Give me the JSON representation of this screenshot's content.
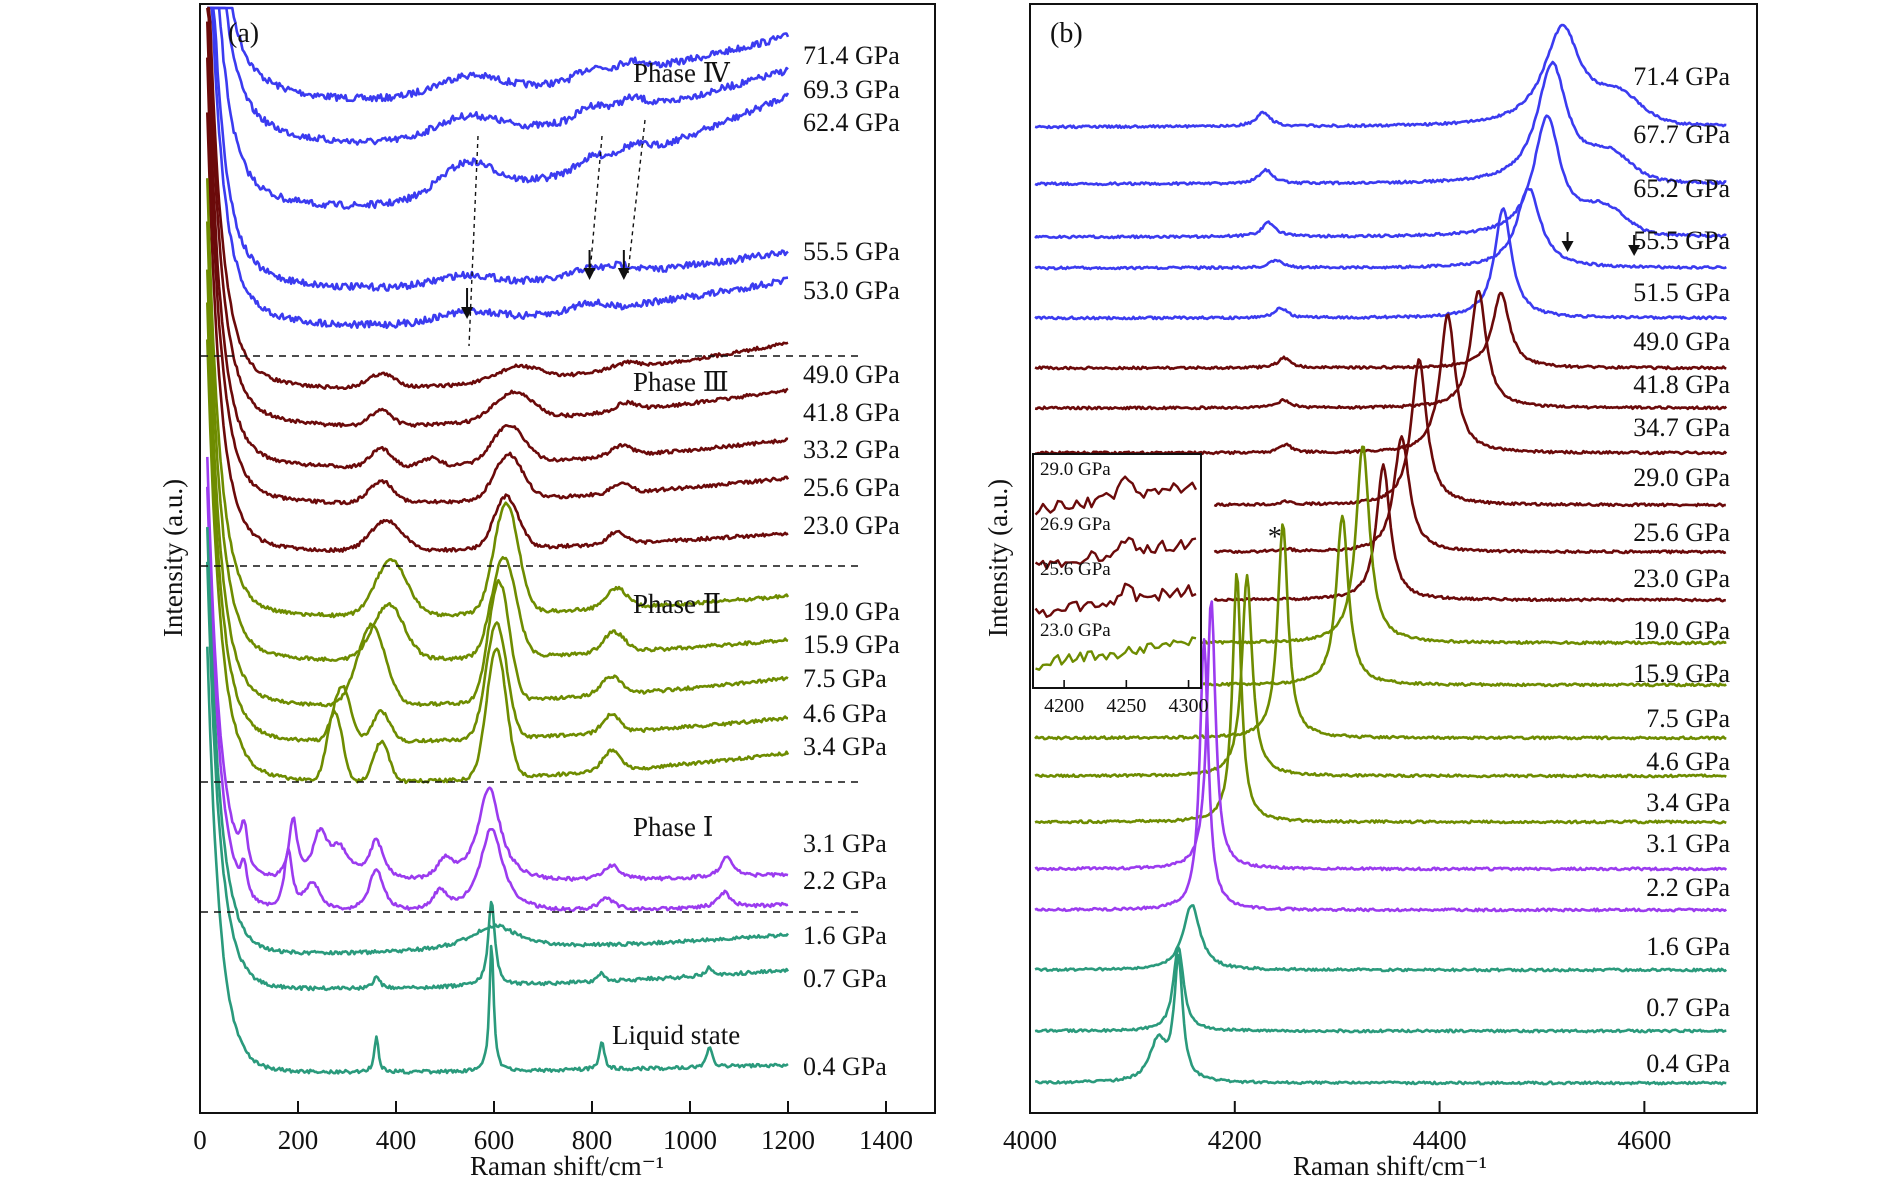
{
  "chart_data": [
    {
      "type": "line",
      "panel_label": "(a)",
      "title": "",
      "xlabel": "Raman shift/cm⁻¹",
      "ylabel": "Intensity (a.u.)",
      "xlim": [
        0,
        1500
      ],
      "xticks": [
        0,
        200,
        400,
        600,
        800,
        1000,
        1200,
        1400
      ],
      "x_data_range": [
        15,
        1200
      ],
      "y_ticks_shown": false,
      "grid": false,
      "legend": "none (series labeled at right end)",
      "phase_annotations": [
        {
          "text": "Phase Ⅳ",
          "phase": "IV"
        },
        {
          "text": "Phase Ⅲ",
          "phase": "III"
        },
        {
          "text": "Phase Ⅱ",
          "phase": "II"
        },
        {
          "text": "Phase Ⅰ",
          "phase": "I"
        },
        {
          "text": "Liquid state",
          "phase": "liquid"
        }
      ],
      "annotation_arrows_cm1": [
        545,
        795,
        865
      ],
      "series": [
        {
          "name": "71.4 GPa",
          "phase": "IV",
          "color": "#3b3bf0",
          "peaks_cm1": [
            545,
            800,
            880
          ]
        },
        {
          "name": "69.3 GPa",
          "phase": "IV",
          "color": "#3b3bf0",
          "peaks_cm1": [
            545,
            800,
            880
          ]
        },
        {
          "name": "62.4 GPa",
          "phase": "IV",
          "color": "#3b3bf0",
          "peaks_cm1": [
            545,
            800,
            880
          ]
        },
        {
          "name": "55.5 GPa",
          "phase": "IV",
          "color": "#3b3bf0",
          "peaks_cm1": [
            540,
            790,
            860
          ]
        },
        {
          "name": "53.0 GPa",
          "phase": "IV",
          "color": "#3b3bf0",
          "peaks_cm1": [
            545,
            790
          ]
        },
        {
          "name": "49.0 GPa",
          "phase": "III",
          "color": "#6b0a0a",
          "peaks_cm1": [
            370,
            650,
            870
          ]
        },
        {
          "name": "41.8 GPa",
          "phase": "III",
          "color": "#6b0a0a",
          "peaks_cm1": [
            370,
            640,
            870
          ]
        },
        {
          "name": "33.2 GPa",
          "phase": "III",
          "color": "#6b0a0a",
          "peaks_cm1": [
            370,
            470,
            630,
            860
          ]
        },
        {
          "name": "25.6 GPa",
          "phase": "III",
          "color": "#6b0a0a",
          "peaks_cm1": [
            370,
            630,
            860
          ]
        },
        {
          "name": "23.0 GPa",
          "phase": "III",
          "color": "#6b0a0a",
          "peaks_cm1": [
            380,
            625,
            850
          ]
        },
        {
          "name": "19.0 GPa",
          "phase": "II",
          "color": "#6e8c00",
          "peaks_cm1": [
            390,
            625,
            850
          ]
        },
        {
          "name": "15.9 GPa",
          "phase": "II",
          "color": "#6e8c00",
          "peaks_cm1": [
            385,
            620,
            845
          ]
        },
        {
          "name": "7.5 GPa",
          "phase": "II",
          "color": "#6e8c00",
          "peaks_cm1": [
            350,
            610,
            840
          ]
        },
        {
          "name": "4.6 GPa",
          "phase": "II",
          "color": "#6e8c00",
          "peaks_cm1": [
            290,
            370,
            605,
            840
          ]
        },
        {
          "name": "3.4 GPa",
          "phase": "II",
          "color": "#6e8c00",
          "peaks_cm1": [
            275,
            370,
            605,
            840
          ]
        },
        {
          "name": "3.1 GPa",
          "phase": "I",
          "color": "#9b3bef",
          "peaks_cm1": [
            90,
            190,
            245,
            285,
            360,
            500,
            590,
            840,
            1075
          ]
        },
        {
          "name": "2.2 GPa",
          "phase": "I",
          "color": "#9b3bef",
          "peaks_cm1": [
            90,
            180,
            230,
            360,
            490,
            595,
            830,
            1070
          ]
        },
        {
          "name": "1.6 GPa",
          "phase": "liquid",
          "color": "#2a9a7c",
          "peaks_cm1": [
            600
          ]
        },
        {
          "name": "0.7 GPa",
          "phase": "liquid",
          "color": "#2a9a7c",
          "peaks_cm1": [
            360,
            595,
            820,
            1040
          ]
        },
        {
          "name": "0.4 GPa",
          "phase": "liquid",
          "color": "#2a9a7c",
          "peaks_cm1": [
            360,
            595,
            820,
            1040
          ]
        }
      ]
    },
    {
      "type": "line",
      "panel_label": "(b)",
      "title": "",
      "xlabel": "Raman shift/cm⁻¹",
      "ylabel": "Intensity (a.u.)",
      "xlim": [
        4000,
        4710
      ],
      "xticks": [
        4000,
        4200,
        4400,
        4600
      ],
      "x_data_range": [
        4005,
        4680
      ],
      "y_ticks_shown": false,
      "grid": false,
      "legend": "none (series labeled at right end)",
      "annotations": [
        {
          "text": "*",
          "x_cm1": 4240
        }
      ],
      "annotation_arrows_cm1": [
        4525,
        4590
      ],
      "series": [
        {
          "name": "71.4 GPa",
          "color": "#3b3bf0",
          "peaks_cm1": [
            4228,
            4520
          ]
        },
        {
          "name": "67.7 GPa",
          "color": "#3b3bf0",
          "peaks_cm1": [
            4230,
            4510
          ]
        },
        {
          "name": "65.2 GPa",
          "color": "#3b3bf0",
          "peaks_cm1": [
            4233,
            4505
          ]
        },
        {
          "name": "55.5 GPa",
          "color": "#3b3bf0",
          "peaks_cm1": [
            4240,
            4487
          ]
        },
        {
          "name": "51.5 GPa",
          "color": "#3b3bf0",
          "peaks_cm1": [
            4245,
            4462
          ]
        },
        {
          "name": "49.0 GPa",
          "color": "#6b0a0a",
          "peaks_cm1": [
            4248,
            4460
          ]
        },
        {
          "name": "41.8 GPa",
          "color": "#6b0a0a",
          "peaks_cm1": [
            4248,
            4438
          ]
        },
        {
          "name": "34.7 GPa",
          "color": "#6b0a0a",
          "peaks_cm1": [
            4250,
            4408
          ]
        },
        {
          "name": "29.0 GPa",
          "color": "#6b0a0a",
          "peaks_cm1": [
            4250,
            4380
          ]
        },
        {
          "name": "25.6 GPa",
          "color": "#6b0a0a",
          "peaks_cm1": [
            4250,
            4363
          ]
        },
        {
          "name": "23.0 GPa",
          "color": "#6b0a0a",
          "peaks_cm1": [
            4345
          ]
        },
        {
          "name": "19.0 GPa",
          "color": "#6e8c00",
          "peaks_cm1": [
            4325
          ]
        },
        {
          "name": "15.9 GPa",
          "color": "#6e8c00",
          "peaks_cm1": [
            4305
          ]
        },
        {
          "name": "7.5 GPa",
          "color": "#6e8c00",
          "peaks_cm1": [
            4247
          ]
        },
        {
          "name": "4.6 GPa",
          "color": "#6e8c00",
          "peaks_cm1": [
            4212
          ]
        },
        {
          "name": "3.4 GPa",
          "color": "#6e8c00",
          "peaks_cm1": [
            4202
          ]
        },
        {
          "name": "3.1 GPa",
          "color": "#9b3bef",
          "peaks_cm1": [
            4177
          ]
        },
        {
          "name": "2.2 GPa",
          "color": "#9b3bef",
          "peaks_cm1": [
            4170
          ]
        },
        {
          "name": "1.6 GPa",
          "color": "#2a9a7c",
          "peaks_cm1": [
            4158
          ]
        },
        {
          "name": "0.7 GPa",
          "color": "#2a9a7c",
          "peaks_cm1": [
            4145
          ]
        },
        {
          "name": "0.4 GPa",
          "color": "#2a9a7c",
          "peaks_cm1": [
            4125,
            4145
          ]
        }
      ],
      "inset": {
        "xlim": [
          4175,
          4310
        ],
        "xticks": [
          4200,
          4250,
          4300
        ],
        "series": [
          {
            "name": "29.0 GPa",
            "color": "#6b0a0a",
            "peaks_cm1": [
              4250
            ]
          },
          {
            "name": "26.9 GPa",
            "color": "#6b0a0a",
            "peaks_cm1": [
              4250
            ]
          },
          {
            "name": "25.6 GPa",
            "color": "#6b0a0a",
            "peaks_cm1": [
              4250
            ]
          },
          {
            "name": "23.0 GPa",
            "color": "#6e8c00",
            "peaks_cm1": []
          }
        ]
      }
    }
  ]
}
